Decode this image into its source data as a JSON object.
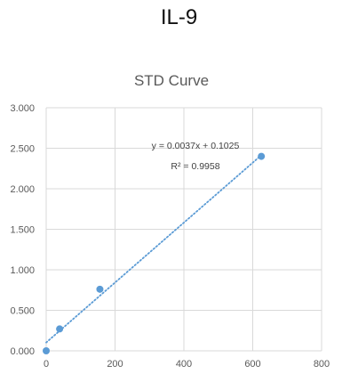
{
  "page_title": "IL-9",
  "chart_data": {
    "type": "scatter",
    "title": "STD Curve",
    "xlabel": "",
    "ylabel": "",
    "xlim": [
      0,
      800
    ],
    "ylim": [
      0,
      3
    ],
    "x_ticks": [
      0,
      200,
      400,
      600,
      800
    ],
    "x_tick_labels": [
      "0",
      "200",
      "400",
      "600",
      "800"
    ],
    "y_ticks": [
      0,
      0.5,
      1,
      1.5,
      2,
      2.5,
      3
    ],
    "y_tick_labels": [
      "0.000",
      "0.500",
      "1.000",
      "1.500",
      "2.000",
      "2.500",
      "3.000"
    ],
    "grid": true,
    "series": [
      {
        "x": [
          0,
          39,
          156,
          625
        ],
        "y": [
          0.0,
          0.27,
          0.76,
          2.4
        ],
        "color": "#5b9bd5"
      }
    ],
    "trendline": {
      "slope": 0.0037,
      "intercept": 0.1025,
      "style": "dotted",
      "color": "#5b9bd5",
      "equation": "y = 0.0037x + 0.1025",
      "r_squared": "R² = 0.9958"
    }
  }
}
